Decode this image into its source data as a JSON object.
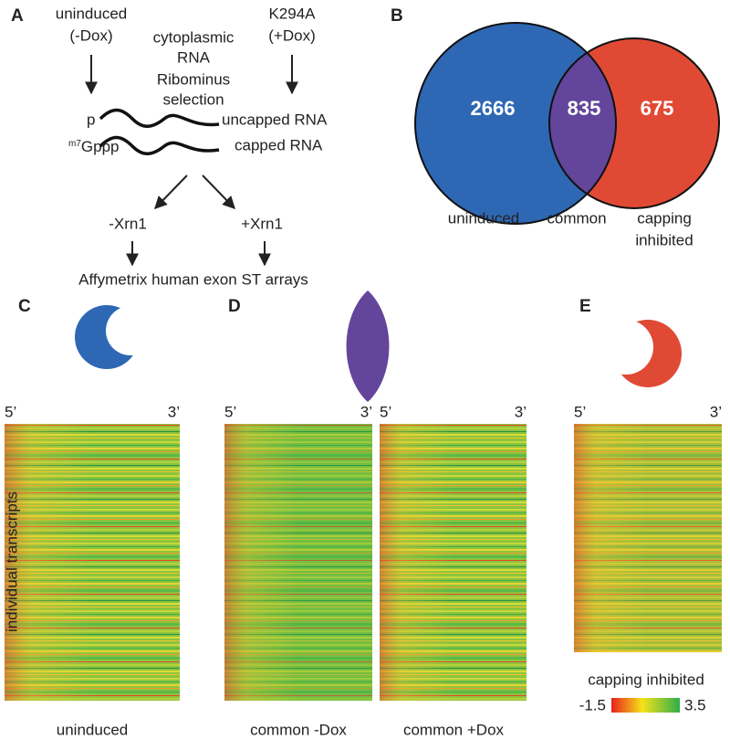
{
  "panels": {
    "a": "A",
    "b": "B",
    "c": "C",
    "d": "D",
    "e": "E"
  },
  "schematic": {
    "left_condition": [
      "uninduced",
      "(-Dox)"
    ],
    "right_condition": [
      "K294A",
      "(+Dox)"
    ],
    "source": [
      "cytoplasmic",
      "RNA"
    ],
    "selection": [
      "Ribominus",
      "selection"
    ],
    "uncapped_end": "p",
    "capped_end_prefix": "m7",
    "capped_end": "Gppp",
    "uncapped_label": "uncapped RNA",
    "capped_label": "capped RNA",
    "minus_xrn1": "-Xrn1",
    "plus_xrn1": "+Xrn1",
    "array": "Affymetrix human exon ST arrays"
  },
  "venn": {
    "sets": [
      {
        "name": [
          "uninduced"
        ],
        "value": 2666,
        "color": "#2e68b4"
      },
      {
        "name": [
          "common"
        ],
        "value": 835,
        "color": "#63459b"
      },
      {
        "name": [
          "capping",
          "inhibited"
        ],
        "value": 675,
        "color": "#e04a35"
      }
    ]
  },
  "heatmaps": {
    "y_label": "individual transcripts",
    "five_prime": "5’",
    "three_prime": "3’",
    "maps": [
      {
        "title": "uninduced"
      },
      {
        "title": "common -Dox"
      },
      {
        "title": "common +Dox"
      },
      {
        "title": "capping inhibited"
      }
    ],
    "colorbar": {
      "min": -1.5,
      "max": 3.5
    }
  }
}
